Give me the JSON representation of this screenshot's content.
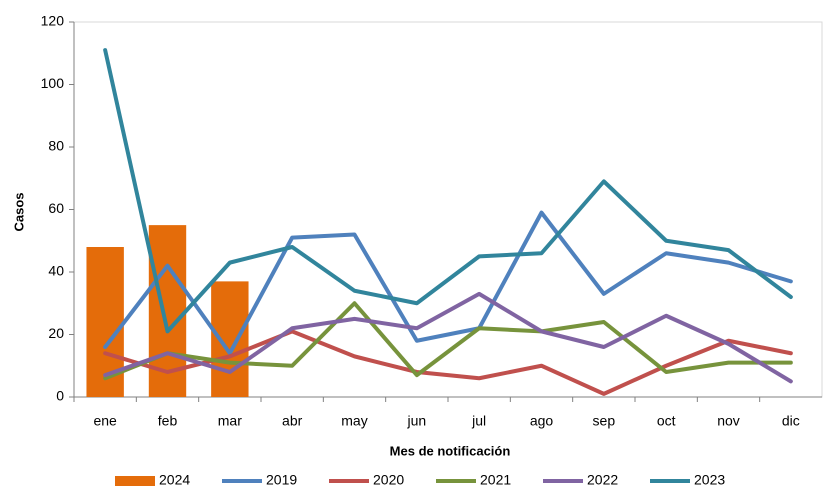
{
  "chart_data": {
    "type": "combo",
    "y_label": "Casos",
    "x_label": "Mes de notificación",
    "categories": [
      "ene",
      "feb",
      "mar",
      "abr",
      "may",
      "jun",
      "jul",
      "ago",
      "sep",
      "oct",
      "nov",
      "dic"
    ],
    "ylim": [
      0,
      120
    ],
    "yticks": [
      0,
      20,
      40,
      60,
      80,
      100,
      120
    ],
    "grid": false,
    "legend": "bottom",
    "series": [
      {
        "name": "2024",
        "type": "bar",
        "color": "#e46c0a",
        "values": [
          48,
          55,
          37,
          null,
          null,
          null,
          null,
          null,
          null,
          null,
          null,
          null
        ]
      },
      {
        "name": "2019",
        "type": "line",
        "color": "#4f81bd",
        "values": [
          16,
          42,
          14,
          51,
          52,
          18,
          22,
          59,
          33,
          46,
          43,
          37
        ]
      },
      {
        "name": "2020",
        "type": "line",
        "color": "#c0504d",
        "values": [
          14,
          8,
          13,
          21,
          13,
          8,
          6,
          10,
          1,
          10,
          18,
          14
        ]
      },
      {
        "name": "2021",
        "type": "line",
        "color": "#77933c",
        "values": [
          6,
          14,
          11,
          10,
          30,
          7,
          22,
          21,
          24,
          8,
          11,
          11
        ]
      },
      {
        "name": "2022",
        "type": "line",
        "color": "#8064a2",
        "values": [
          7,
          14,
          8,
          22,
          25,
          22,
          33,
          21,
          16,
          26,
          17,
          5
        ]
      },
      {
        "name": "2023",
        "type": "line",
        "color": "#31859c",
        "values": [
          111,
          21,
          43,
          48,
          34,
          30,
          45,
          46,
          69,
          50,
          47,
          32
        ]
      }
    ]
  }
}
